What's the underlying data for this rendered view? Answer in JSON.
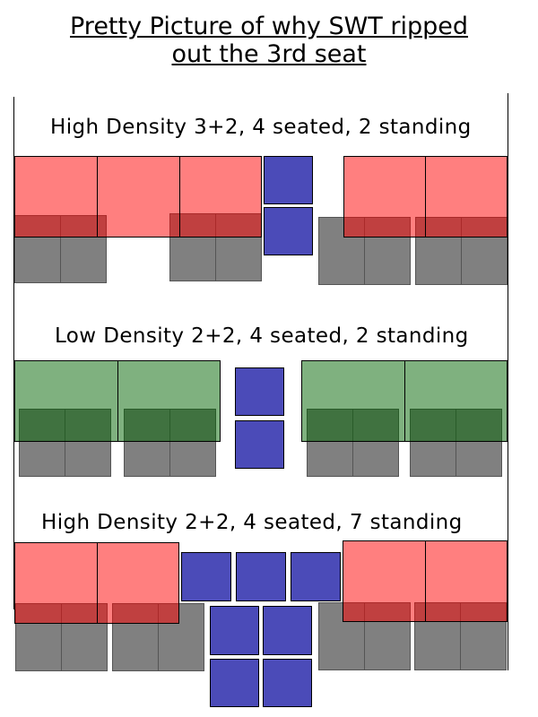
{
  "title": {
    "line1": "Pretty Picture of why SWT ripped",
    "line2": "out the 3rd seat"
  },
  "colors": {
    "high_density_seat": "#ff7f7f",
    "low_density_seat": "#7fb27f",
    "standing_passenger": "#4b4bb8",
    "legs": "#808080"
  },
  "sections": [
    {
      "label": "High Density 3+2, 4 seated, 2 standing"
    },
    {
      "label": "Low Density 2+2, 4 seated, 2 standing"
    },
    {
      "label": "High Density 2+2, 4 seated, 7 standing"
    }
  ]
}
